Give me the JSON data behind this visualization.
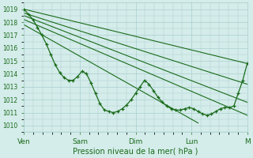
{
  "xlabel": "Pression niveau de la mer( hPa )",
  "ylim": [
    1009.5,
    1019.5
  ],
  "yticks": [
    1010,
    1011,
    1012,
    1013,
    1014,
    1015,
    1016,
    1017,
    1018,
    1019
  ],
  "day_labels": [
    "Ven",
    "Sam",
    "Dim",
    "Lun",
    "M"
  ],
  "day_positions": [
    0,
    0.25,
    0.5,
    0.75,
    1.0
  ],
  "xlim": [
    0,
    1.0
  ],
  "bg_color": "#d4ecea",
  "grid_color": "#aacfcf",
  "line_color": "#1a6b1a",
  "fan_lines": [
    {
      "x0": 0.0,
      "y0": 1019.0,
      "x1": 1.0,
      "y1": 1014.8
    },
    {
      "x0": 0.0,
      "y0": 1018.7,
      "x1": 1.0,
      "y1": 1013.2
    },
    {
      "x0": 0.0,
      "y0": 1018.5,
      "x1": 1.0,
      "y1": 1011.8
    },
    {
      "x0": 0.0,
      "y0": 1018.2,
      "x1": 1.0,
      "y1": 1010.8
    },
    {
      "x0": 0.0,
      "y0": 1017.8,
      "x1": 0.78,
      "y1": 1010.2
    }
  ],
  "wavy_x": [
    0.0,
    0.02,
    0.04,
    0.06,
    0.08,
    0.1,
    0.12,
    0.14,
    0.16,
    0.18,
    0.2,
    0.22,
    0.24,
    0.26,
    0.28,
    0.3,
    0.32,
    0.34,
    0.36,
    0.38,
    0.4,
    0.42,
    0.44,
    0.46,
    0.48,
    0.5,
    0.52,
    0.54,
    0.56,
    0.58,
    0.6,
    0.62,
    0.64,
    0.66,
    0.68,
    0.7,
    0.72,
    0.74,
    0.76,
    0.78,
    0.8,
    0.82,
    0.84,
    0.86,
    0.88,
    0.9,
    0.92,
    0.94,
    0.96,
    0.98,
    1.0
  ],
  "wavy_y": [
    1019.0,
    1018.6,
    1018.2,
    1017.6,
    1017.0,
    1016.3,
    1015.5,
    1014.7,
    1014.1,
    1013.7,
    1013.5,
    1013.5,
    1013.8,
    1014.2,
    1014.0,
    1013.3,
    1012.5,
    1011.7,
    1011.2,
    1011.1,
    1011.0,
    1011.1,
    1011.3,
    1011.6,
    1012.0,
    1012.5,
    1013.0,
    1013.5,
    1013.2,
    1012.7,
    1012.2,
    1011.8,
    1011.5,
    1011.3,
    1011.2,
    1011.2,
    1011.3,
    1011.4,
    1011.3,
    1011.1,
    1010.9,
    1010.8,
    1010.9,
    1011.1,
    1011.3,
    1011.4,
    1011.4,
    1011.5,
    1012.5,
    1013.5,
    1014.8
  ]
}
